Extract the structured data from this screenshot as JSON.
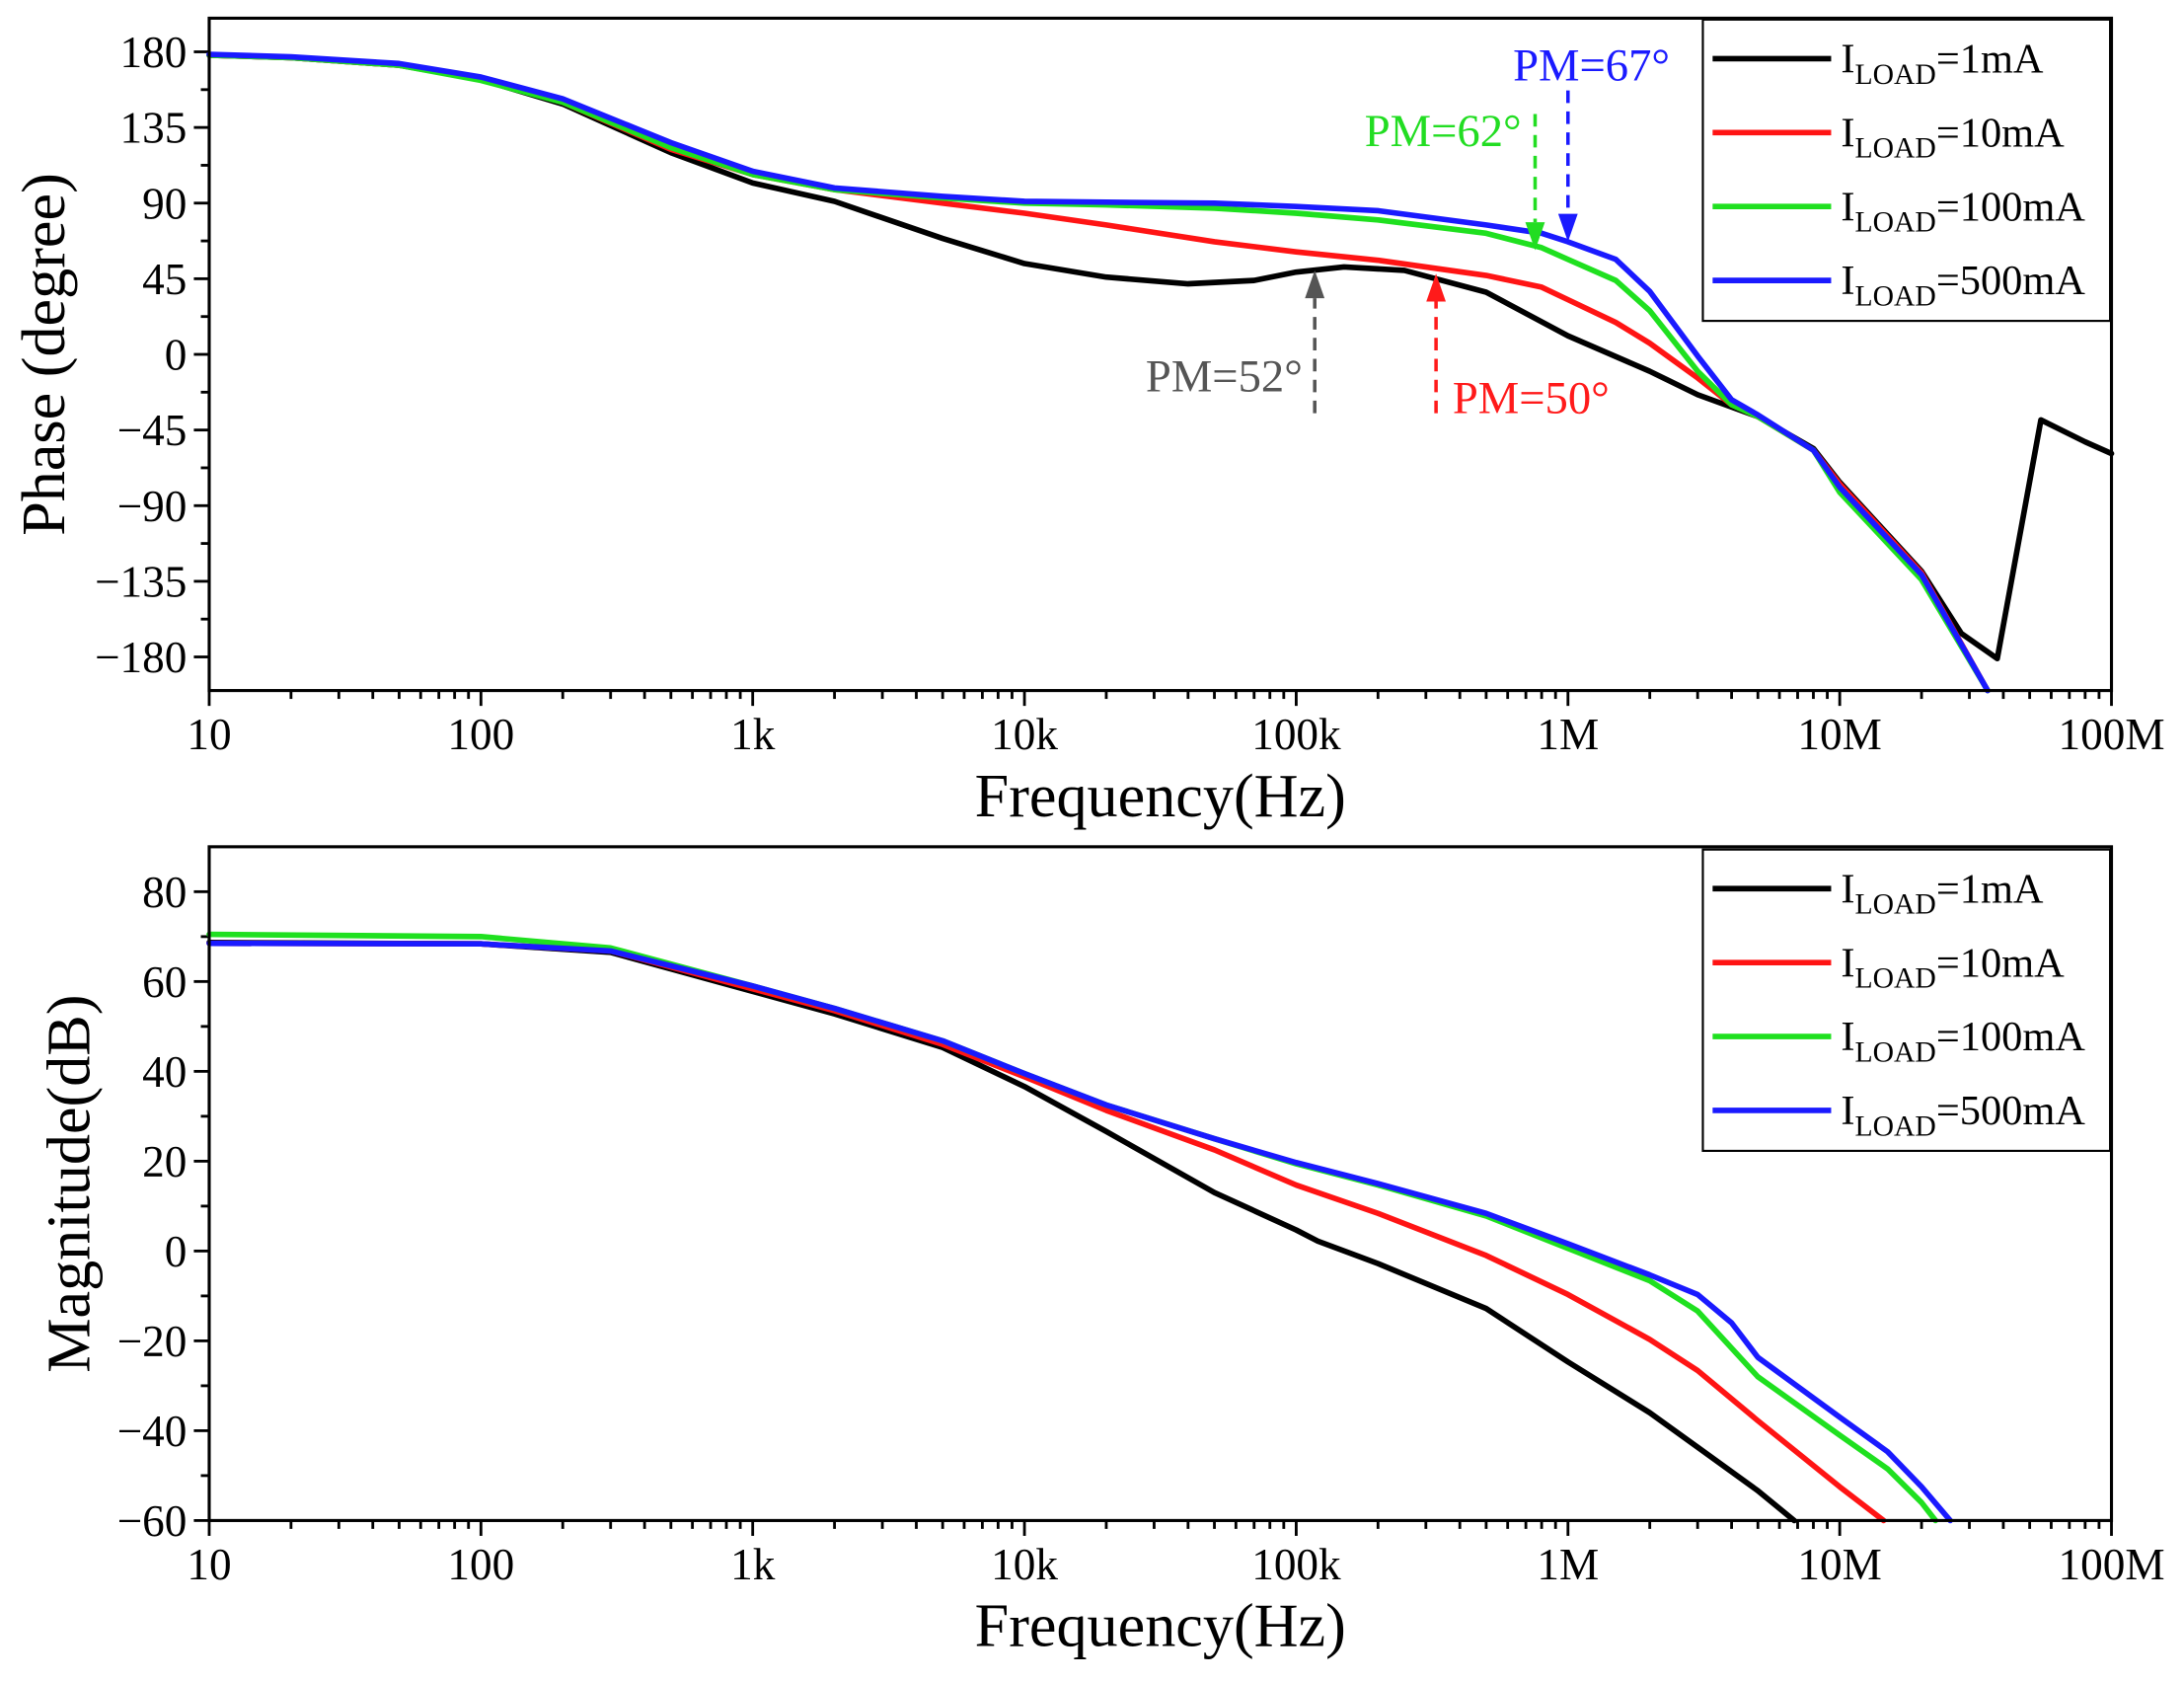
{
  "chart_data": [
    {
      "id": "phase",
      "type": "line",
      "xscale": "log",
      "xlim": [
        10,
        100000000
      ],
      "ylim": [
        -200,
        200
      ],
      "xlabel": "Frequency(Hz)",
      "ylabel": "Phase (degree)",
      "grid": false,
      "legend": "top-right",
      "xticks": [
        10,
        100,
        1000,
        10000,
        100000,
        1000000,
        10000000,
        100000000
      ],
      "xtick_labels": [
        "10",
        "100",
        "1k",
        "10k",
        "100k",
        "1M",
        "10M",
        "100M"
      ],
      "yticks": [
        180,
        135,
        90,
        45,
        0,
        -45,
        -90,
        -135,
        -180
      ],
      "ytick_labels": [
        "180",
        "135",
        "90",
        "45",
        "0",
        "−45",
        "−90",
        "−135",
        "−180"
      ],
      "series": [
        {
          "name_prefix": "I",
          "name_sub": "LOAD",
          "name_suffix": "=1mA",
          "color": "#000000",
          "x": [
            10,
            20,
            50,
            100,
            200,
            500,
            1000,
            2000,
            5000,
            10000,
            20000,
            40000,
            70000,
            100000,
            150000,
            250000,
            500000,
            1000000,
            2000000,
            3000000,
            5000000,
            8000000,
            10000000,
            20000000,
            28000000,
            38000000,
            55000000,
            80000000,
            100000000
          ],
          "y": [
            178,
            176.5,
            172,
            163.5,
            149,
            120,
            102,
            91,
            69,
            54,
            46,
            42,
            44,
            49,
            52,
            50,
            37,
            11,
            -10,
            -24,
            -37,
            -56,
            -76,
            -129,
            -166,
            -181,
            -39,
            -52,
            -59
          ]
        },
        {
          "name_prefix": "I",
          "name_sub": "LOAD",
          "name_suffix": "=10mA",
          "color": "#ff1414",
          "x": [
            10,
            20,
            50,
            100,
            200,
            500,
            1000,
            2000,
            5000,
            10000,
            20000,
            50000,
            100000,
            200000,
            500000,
            800000,
            1000000,
            1500000,
            2000000,
            3000000,
            4000000,
            5000000,
            8000000,
            10000000,
            20000000,
            35000000
          ],
          "y": [
            178,
            176.5,
            172,
            164,
            150,
            122,
            107,
            98,
            90,
            84,
            77,
            67,
            61,
            56,
            47,
            40,
            32.5,
            19,
            6.6,
            -14,
            -30,
            -37,
            -57,
            -77,
            -130,
            -200
          ]
        },
        {
          "name_prefix": "I",
          "name_sub": "LOAD",
          "name_suffix": "=100mA",
          "color": "#1fe01f",
          "x": [
            10,
            20,
            50,
            100,
            200,
            500,
            1000,
            2000,
            5000,
            10000,
            20000,
            50000,
            100000,
            200000,
            500000,
            800000,
            1000000,
            1500000,
            2000000,
            3000000,
            4000000,
            5000000,
            8000000,
            10000000,
            20000000,
            35000000
          ],
          "y": [
            178,
            176.5,
            172,
            163,
            150,
            123,
            107,
            98,
            93,
            90,
            89,
            87,
            84,
            80,
            72,
            63.5,
            56.5,
            44,
            26,
            -10,
            -30,
            -37,
            -57,
            -82,
            -134,
            -200
          ]
        },
        {
          "name_prefix": "I",
          "name_sub": "LOAD",
          "name_suffix": "=500mA",
          "color": "#1a1aff",
          "x": [
            10,
            20,
            50,
            100,
            200,
            500,
            1000,
            2000,
            5000,
            10000,
            20000,
            50000,
            100000,
            200000,
            500000,
            800000,
            1000000,
            1500000,
            2000000,
            3000000,
            4000000,
            5000000,
            8000000,
            10000000,
            20000000,
            35000000
          ],
          "y": [
            178.5,
            177,
            173,
            165,
            152,
            126,
            109,
            99,
            94,
            91,
            90.5,
            90,
            88,
            85.5,
            77,
            72,
            67,
            56.5,
            37.5,
            -1,
            -27,
            -36,
            -57,
            -79,
            -131,
            -200
          ]
        }
      ],
      "annotations": [
        {
          "text": "PM=67°",
          "color": "#1a1aff",
          "x": 1000000,
          "y_from": 157,
          "y_to": 67,
          "x_text": 1220000,
          "y_text": 163
        },
        {
          "text": "PM=62°",
          "color": "#22dd22",
          "x": 757000,
          "y_from": 143,
          "y_to": 62,
          "x_text": 347000,
          "y_text": 124
        },
        {
          "text": "PM=52°",
          "color": "#555555",
          "x": 117000,
          "y_from": -35,
          "y_to": 50,
          "x_text": 54300,
          "y_text": -22
        },
        {
          "text": "PM=50°",
          "color": "#ff1a1a",
          "x": 327000,
          "y_from": -35,
          "y_to": 48,
          "x_text": 731000,
          "y_text": -35
        }
      ]
    },
    {
      "id": "magnitude",
      "type": "line",
      "xscale": "log",
      "xlim": [
        10,
        100000000
      ],
      "ylim": [
        -60,
        90
      ],
      "xlabel": "Frequency(Hz)",
      "ylabel": "Magnitude(dB)",
      "grid": false,
      "legend": "top-right",
      "xticks": [
        10,
        100,
        1000,
        10000,
        100000,
        1000000,
        10000000,
        100000000
      ],
      "xtick_labels": [
        "10",
        "100",
        "1k",
        "10k",
        "100k",
        "1M",
        "10M",
        "100M"
      ],
      "yticks": [
        80,
        60,
        40,
        20,
        0,
        -20,
        -40,
        -60
      ],
      "ytick_labels": [
        "80",
        "60",
        "40",
        "20",
        "0",
        "−20",
        "−40",
        "−60"
      ],
      "series": [
        {
          "name_prefix": "I",
          "name_sub": "LOAD",
          "name_suffix": "=1mA",
          "color": "#000000",
          "x": [
            10,
            100,
            300,
            1000,
            2000,
            5000,
            10000,
            20000,
            50000,
            100000,
            120000,
            200000,
            500000,
            1000000,
            2000000,
            3000000,
            5000000,
            6800000
          ],
          "y": [
            68.7,
            68.4,
            66.5,
            57.8,
            52.8,
            45.3,
            36.6,
            26.6,
            13,
            4.7,
            2.2,
            -2.8,
            -12.8,
            -24.7,
            -36,
            -43.7,
            -53.4,
            -60
          ]
        },
        {
          "name_prefix": "I",
          "name_sub": "LOAD",
          "name_suffix": "=10mA",
          "color": "#ff1414",
          "x": [
            10,
            100,
            300,
            1000,
            2000,
            5000,
            10000,
            20000,
            50000,
            100000,
            200000,
            500000,
            1000000,
            2000000,
            3000000,
            5000000,
            10000000,
            14500000
          ],
          "y": [
            68.5,
            68.4,
            66.8,
            58.4,
            53.5,
            46,
            38.8,
            31.3,
            22.5,
            14.7,
            8.4,
            -1,
            -9.7,
            -19.7,
            -26.6,
            -37.8,
            -52.5,
            -60
          ]
        },
        {
          "name_prefix": "I",
          "name_sub": "LOAD",
          "name_suffix": "=100mA",
          "color": "#1fe01f",
          "x": [
            10,
            100,
            300,
            1000,
            2000,
            5000,
            10000,
            20000,
            50000,
            100000,
            200000,
            500000,
            1000000,
            2000000,
            3000000,
            5000000,
            10000000,
            15000000,
            20000000,
            22500000
          ],
          "y": [
            70.5,
            70,
            67.5,
            59,
            54,
            46.8,
            39.5,
            32.5,
            25,
            19.4,
            14.7,
            7.8,
            0.6,
            -6.6,
            -13.4,
            -28,
            -41,
            -48.5,
            -56,
            -60
          ]
        },
        {
          "name_prefix": "I",
          "name_sub": "LOAD",
          "name_suffix": "=500mA",
          "color": "#1a1aff",
          "x": [
            10,
            100,
            300,
            1000,
            2000,
            5000,
            10000,
            20000,
            50000,
            100000,
            200000,
            500000,
            1000000,
            2000000,
            3000000,
            4000000,
            5000000,
            10000000,
            15000000,
            20000000,
            25500000
          ],
          "y": [
            68.5,
            68.4,
            66.8,
            59,
            54,
            46.8,
            39.5,
            32.5,
            25,
            19.7,
            15,
            8.4,
            1.6,
            -5.3,
            -9.7,
            -16,
            -23.7,
            -37,
            -44.7,
            -52.5,
            -60
          ]
        }
      ]
    }
  ]
}
